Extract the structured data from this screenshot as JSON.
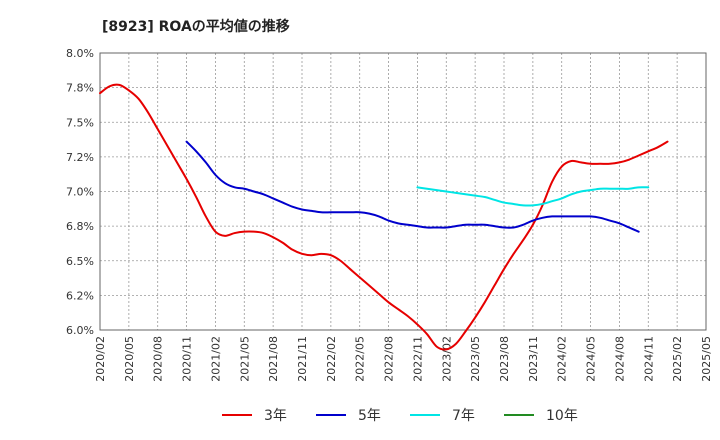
{
  "chart_data": {
    "type": "line",
    "title": "[8923]  ROAの平均値の推移",
    "xlabel": "",
    "ylabel": "",
    "ylim": [
      6.0,
      8.0
    ],
    "yticks": [
      6.0,
      6.25,
      6.5,
      6.75,
      7.0,
      7.25,
      7.5,
      7.75,
      8.0
    ],
    "ytick_labels": [
      "6.0%",
      "6.2%",
      "6.5%",
      "6.8%",
      "7.0%",
      "7.2%",
      "7.5%",
      "7.8%",
      "8.0%"
    ],
    "x_tick_labels": [
      "2020/02",
      "2020/05",
      "2020/08",
      "2020/11",
      "2021/02",
      "2021/05",
      "2021/08",
      "2021/11",
      "2022/02",
      "2022/05",
      "2022/08",
      "2022/11",
      "2023/02",
      "2023/05",
      "2023/08",
      "2023/11",
      "2024/02",
      "2024/05",
      "2024/08",
      "2024/11",
      "2025/02",
      "2025/05"
    ],
    "grid": true,
    "legend_position": "bottom",
    "series": [
      {
        "name": "3年",
        "color": "#e60000",
        "start": "2020/02",
        "values": [
          7.71,
          7.76,
          7.77,
          7.73,
          7.67,
          7.57,
          7.45,
          7.33,
          7.21,
          7.09,
          6.96,
          6.82,
          6.71,
          6.68,
          6.7,
          6.71,
          6.71,
          6.7,
          6.67,
          6.63,
          6.58,
          6.55,
          6.54,
          6.55,
          6.54,
          6.5,
          6.44,
          6.38,
          6.32,
          6.26,
          6.2,
          6.15,
          6.1,
          6.04,
          5.97,
          5.88,
          5.86,
          5.9,
          5.99,
          6.09,
          6.2,
          6.32,
          6.44,
          6.55,
          6.65,
          6.76,
          6.9,
          7.07,
          7.18,
          7.22,
          7.21,
          7.2,
          7.2,
          7.2,
          7.21,
          7.23,
          7.26,
          7.29,
          7.32,
          7.36
        ]
      },
      {
        "name": "5年",
        "color": "#0000cc",
        "start": "2020/11",
        "values": [
          7.36,
          7.29,
          7.21,
          7.12,
          7.06,
          7.03,
          7.02,
          7.0,
          6.98,
          6.95,
          6.92,
          6.89,
          6.87,
          6.86,
          6.85,
          6.85,
          6.85,
          6.85,
          6.85,
          6.84,
          6.82,
          6.79,
          6.77,
          6.76,
          6.75,
          6.74,
          6.74,
          6.74,
          6.75,
          6.76,
          6.76,
          6.76,
          6.75,
          6.74,
          6.74,
          6.76,
          6.79,
          6.81,
          6.82,
          6.82,
          6.82,
          6.82,
          6.82,
          6.81,
          6.79,
          6.77,
          6.74,
          6.71
        ]
      },
      {
        "name": "7年",
        "color": "#00e5e5",
        "start": "2022/11",
        "values": [
          7.03,
          7.02,
          7.01,
          7.0,
          6.99,
          6.98,
          6.97,
          6.96,
          6.94,
          6.92,
          6.91,
          6.9,
          6.9,
          6.91,
          6.93,
          6.95,
          6.98,
          7.0,
          7.01,
          7.02,
          7.02,
          7.02,
          7.02,
          7.03,
          7.03
        ]
      },
      {
        "name": "10年",
        "color": "#228b22",
        "start": "2025/02",
        "values": []
      }
    ]
  }
}
